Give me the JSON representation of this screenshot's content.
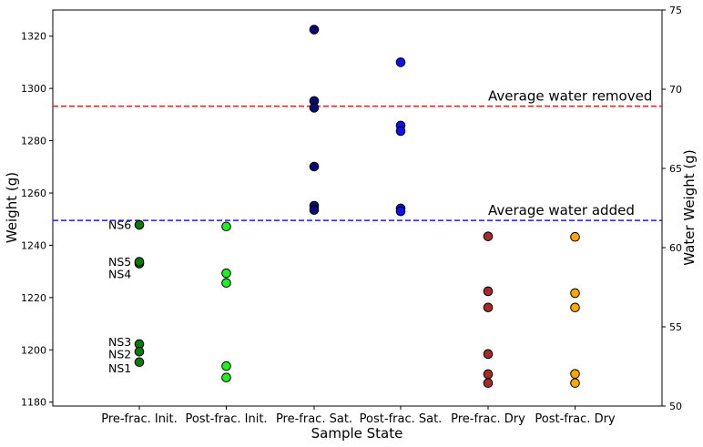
{
  "chart_data": {
    "type": "scatter",
    "title": "",
    "xlabel": "Sample State",
    "ylabel": "Weight (g)",
    "y2label": "Water Weight (g)",
    "ylim": [
      1178.5,
      1330
    ],
    "y2lim": [
      50,
      75
    ],
    "yticks": [
      1180,
      1200,
      1220,
      1240,
      1260,
      1280,
      1300,
      1320
    ],
    "y2ticks": [
      50,
      55,
      60,
      65,
      70,
      75
    ],
    "grid": false,
    "categories": [
      "Pre-frac. Init.",
      "Post-frac. Init.",
      "Pre-frac. Sat.",
      "Post-frac. Sat.",
      "Pre-frac. Dry",
      "Post-frac. Dry"
    ],
    "series": [
      {
        "category": "Pre-frac. Init.",
        "color": "#0a7a0a",
        "values": [
          1247.8,
          1233.0,
          1233.7,
          1202.2,
          1199.3,
          1195.3
        ]
      },
      {
        "category": "Post-frac. Init.",
        "color": "#22ee22",
        "values": [
          1247.2,
          1229.3,
          1225.6,
          1193.8,
          1189.4
        ]
      },
      {
        "category": "Pre-frac. Sat.",
        "color": "#0a0a78",
        "values": [
          1322.5,
          1295.2,
          1292.6,
          1270.1,
          1255.1,
          1253.5
        ]
      },
      {
        "category": "Post-frac. Sat.",
        "color": "#1010f0",
        "values": [
          1310.0,
          1285.8,
          1283.7,
          1254.1,
          1253.0
        ]
      },
      {
        "category": "Pre-frac. Dry",
        "color": "#a52a2a",
        "values": [
          1243.4,
          1222.4,
          1216.2,
          1198.4,
          1190.7,
          1187.3
        ]
      },
      {
        "category": "Post-frac. Dry",
        "color": "#ffa500",
        "values": [
          1243.2,
          1221.7,
          1216.2,
          1190.8,
          1187.3
        ]
      }
    ],
    "hlines": [
      {
        "label": "Average water removed",
        "y": 1293.2,
        "color": "#e31a1c"
      },
      {
        "label": "Average water added",
        "y": 1249.5,
        "color": "#1f1fe6"
      }
    ],
    "point_labels": [
      {
        "text": "NS6",
        "category": "Pre-frac. Init.",
        "y": 1247.8
      },
      {
        "text": "NS5",
        "category": "Pre-frac. Init.",
        "y": 1233.7
      },
      {
        "text": "NS4",
        "category": "Pre-frac. Init.",
        "y": 1229.0
      },
      {
        "text": "NS3",
        "category": "Pre-frac. Init.",
        "y": 1203.0
      },
      {
        "text": "NS2",
        "category": "Pre-frac. Init.",
        "y": 1198.3
      },
      {
        "text": "NS1",
        "category": "Pre-frac. Init.",
        "y": 1193.0
      }
    ]
  }
}
